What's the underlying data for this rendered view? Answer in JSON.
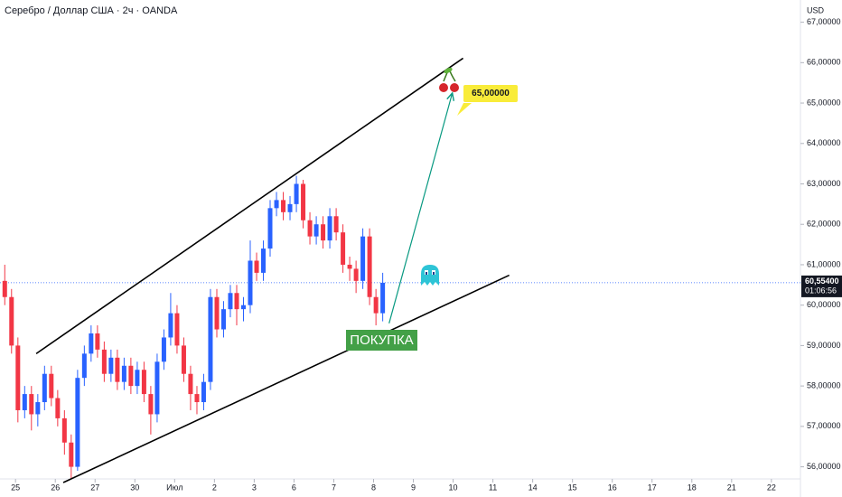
{
  "chart_data": {
    "type": "candlestick",
    "title": "Серебро / Доллар США · 2ч · OANDA",
    "currency": "USD",
    "up_color": "#2962ff",
    "down_color": "#f23645",
    "xlim": [
      -0.39,
      19.73
    ],
    "ylim": [
      55.7,
      67.55
    ],
    "xticks": [
      {
        "value": 0,
        "label": "25"
      },
      {
        "value": 1,
        "label": "26"
      },
      {
        "value": 2,
        "label": "27"
      },
      {
        "value": 3,
        "label": "30"
      },
      {
        "value": 4,
        "label": "Июл"
      },
      {
        "value": 5,
        "label": "2"
      },
      {
        "value": 6,
        "label": "3"
      },
      {
        "value": 7,
        "label": "6"
      },
      {
        "value": 8,
        "label": "7"
      },
      {
        "value": 9,
        "label": "8"
      },
      {
        "value": 10,
        "label": "9"
      },
      {
        "value": 11,
        "label": "10"
      },
      {
        "value": 12,
        "label": "11"
      },
      {
        "value": 13,
        "label": "14"
      },
      {
        "value": 14,
        "label": "15"
      },
      {
        "value": 15,
        "label": "16"
      },
      {
        "value": 16,
        "label": "17"
      },
      {
        "value": 17,
        "label": "18"
      },
      {
        "value": 18,
        "label": "21"
      },
      {
        "value": 19,
        "label": "22"
      }
    ],
    "yticks": [
      {
        "value": 56,
        "label": "56,00000"
      },
      {
        "value": 57,
        "label": "57,00000"
      },
      {
        "value": 58,
        "label": "58,00000"
      },
      {
        "value": 59,
        "label": "59,00000"
      },
      {
        "value": 60,
        "label": "60,00000"
      },
      {
        "value": 61,
        "label": "61,00000"
      },
      {
        "value": 62,
        "label": "62,00000"
      },
      {
        "value": 63,
        "label": "63,00000"
      },
      {
        "value": 64,
        "label": "64,00000"
      },
      {
        "value": 65,
        "label": "65,00000"
      },
      {
        "value": 66,
        "label": "66,00000"
      },
      {
        "value": 67,
        "label": "67,00000"
      }
    ],
    "x": [
      -0.27,
      -0.1,
      0.06,
      0.23,
      0.4,
      0.56,
      0.73,
      0.9,
      1.06,
      1.23,
      1.4,
      1.56,
      1.73,
      1.9,
      2.06,
      2.23,
      2.4,
      2.56,
      2.73,
      2.9,
      3.06,
      3.23,
      3.4,
      3.56,
      3.73,
      3.9,
      4.06,
      4.23,
      4.4,
      4.56,
      4.73,
      4.9,
      5.06,
      5.23,
      5.4,
      5.56,
      5.73,
      5.9,
      6.06,
      6.23,
      6.4,
      6.56,
      6.73,
      6.9,
      7.06,
      7.23,
      7.4,
      7.56,
      7.73,
      7.9,
      8.06,
      8.23,
      8.4,
      8.56,
      8.73,
      8.9,
      9.06,
      9.23
    ],
    "open": [
      60.6,
      60.2,
      59.0,
      57.4,
      57.8,
      57.3,
      57.6,
      58.3,
      57.7,
      57.2,
      56.6,
      56.0,
      58.2,
      58.8,
      59.3,
      58.9,
      58.3,
      58.7,
      58.1,
      58.5,
      58.0,
      58.4,
      57.8,
      57.3,
      58.6,
      59.2,
      59.8,
      59.0,
      58.3,
      57.8,
      57.6,
      58.1,
      60.2,
      59.4,
      59.9,
      60.3,
      59.9,
      60.0,
      61.1,
      60.8,
      61.4,
      62.4,
      62.6,
      62.3,
      62.5,
      63.0,
      62.1,
      61.7,
      62.0,
      61.6,
      62.2,
      61.8,
      61.0,
      60.9,
      60.6,
      61.7,
      60.2,
      59.8
    ],
    "high": [
      61.0,
      60.4,
      59.2,
      58.0,
      58.0,
      57.8,
      58.5,
      58.5,
      57.9,
      57.4,
      56.8,
      58.4,
      59.0,
      59.5,
      59.5,
      59.1,
      58.9,
      58.9,
      58.7,
      58.7,
      58.6,
      58.6,
      58.0,
      58.8,
      59.4,
      60.3,
      60.0,
      59.2,
      58.5,
      58.0,
      58.3,
      60.4,
      60.4,
      60.1,
      60.5,
      60.5,
      60.2,
      61.6,
      61.3,
      61.6,
      62.6,
      62.8,
      62.8,
      62.7,
      63.2,
      63.1,
      62.3,
      62.2,
      62.2,
      62.4,
      62.4,
      62.0,
      61.2,
      61.1,
      61.9,
      61.9,
      60.4,
      60.8
    ],
    "low": [
      60.0,
      58.8,
      57.1,
      57.2,
      56.9,
      57.0,
      57.4,
      57.5,
      57.0,
      56.3,
      55.7,
      55.9,
      58.0,
      58.6,
      58.7,
      58.1,
      58.1,
      57.9,
      57.9,
      57.8,
      57.8,
      57.6,
      56.8,
      57.1,
      58.4,
      59.0,
      58.8,
      58.1,
      57.4,
      57.3,
      57.4,
      57.9,
      59.2,
      59.2,
      59.7,
      59.5,
      59.6,
      59.8,
      60.6,
      60.6,
      61.2,
      62.2,
      62.1,
      62.1,
      62.3,
      61.9,
      61.5,
      61.5,
      61.4,
      61.4,
      61.6,
      60.8,
      60.6,
      60.3,
      60.4,
      60.0,
      59.5,
      59.6
    ],
    "close": [
      60.2,
      59.0,
      57.4,
      57.8,
      57.3,
      57.6,
      58.3,
      57.7,
      57.2,
      56.6,
      56.0,
      58.2,
      58.8,
      59.3,
      58.9,
      58.3,
      58.7,
      58.1,
      58.5,
      58.0,
      58.4,
      57.8,
      57.3,
      58.6,
      59.2,
      59.8,
      59.0,
      58.3,
      57.8,
      57.6,
      58.1,
      60.2,
      59.4,
      59.9,
      60.3,
      59.9,
      60.0,
      61.1,
      60.8,
      61.4,
      62.4,
      62.6,
      62.3,
      62.5,
      63.0,
      62.1,
      61.7,
      62.0,
      61.6,
      62.2,
      61.8,
      61.0,
      60.9,
      60.6,
      61.7,
      60.2,
      59.8,
      60.554
    ],
    "last_price": {
      "value": 60.554,
      "label": "60,55400"
    },
    "countdown": "01:06:56",
    "trendlines": [
      {
        "x": [
          0.52,
          11.25
        ],
        "y": [
          58.8,
          66.11
        ]
      },
      {
        "x": [
          1.2,
          12.41
        ],
        "y": [
          55.61,
          60.74
        ]
      }
    ],
    "arrow": {
      "x": [
        9.39,
        10.98
      ],
      "y": [
        59.55,
        65.25
      ]
    },
    "buy_label": "ПОКУПКА",
    "target": {
      "value": 65,
      "label": "65,00000"
    }
  }
}
